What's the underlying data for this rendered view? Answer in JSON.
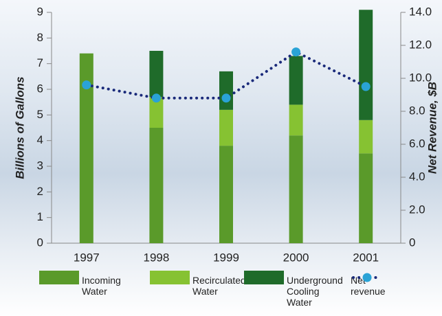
{
  "chart_data": {
    "type": "bar",
    "categories": [
      "1997",
      "1998",
      "1999",
      "2000",
      "2001"
    ],
    "ylabel": "Billions of Gallons",
    "y2label": "Net Revenue, $B",
    "ylim": [
      0,
      9
    ],
    "yticks": [
      0,
      1,
      2,
      3,
      4,
      5,
      6,
      7,
      8,
      9
    ],
    "y2lim": [
      0,
      14
    ],
    "y2ticks": [
      0,
      {
        "value": 2,
        "label": "2.0"
      },
      {
        "value": 4,
        "label": "4.0"
      },
      {
        "value": 6,
        "label": "6.0"
      },
      {
        "value": 8,
        "label": "8.0"
      },
      {
        "value": 10,
        "label": "10.0"
      },
      {
        "value": 12,
        "label": "12.0"
      },
      {
        "value": 14,
        "label": "14.0"
      }
    ],
    "series": [
      {
        "name": "Incoming Water",
        "color": "#5a9a2a",
        "values": [
          7.4,
          4.5,
          3.8,
          4.2,
          3.5
        ]
      },
      {
        "name": "Recirculated Water",
        "color": "#86c232",
        "values": [
          0,
          1.2,
          1.4,
          1.2,
          1.3
        ]
      },
      {
        "name": "Underground Cooling Water",
        "color": "#1f6b2a",
        "values": [
          0,
          1.8,
          1.5,
          1.9,
          4.3
        ]
      },
      {
        "name": "Net revenue",
        "type": "line",
        "axis": "y2",
        "color": "#1a2a7a",
        "marker_color": "#2aa3d6",
        "values": [
          9.6,
          8.8,
          8.8,
          11.6,
          9.5
        ]
      }
    ]
  }
}
